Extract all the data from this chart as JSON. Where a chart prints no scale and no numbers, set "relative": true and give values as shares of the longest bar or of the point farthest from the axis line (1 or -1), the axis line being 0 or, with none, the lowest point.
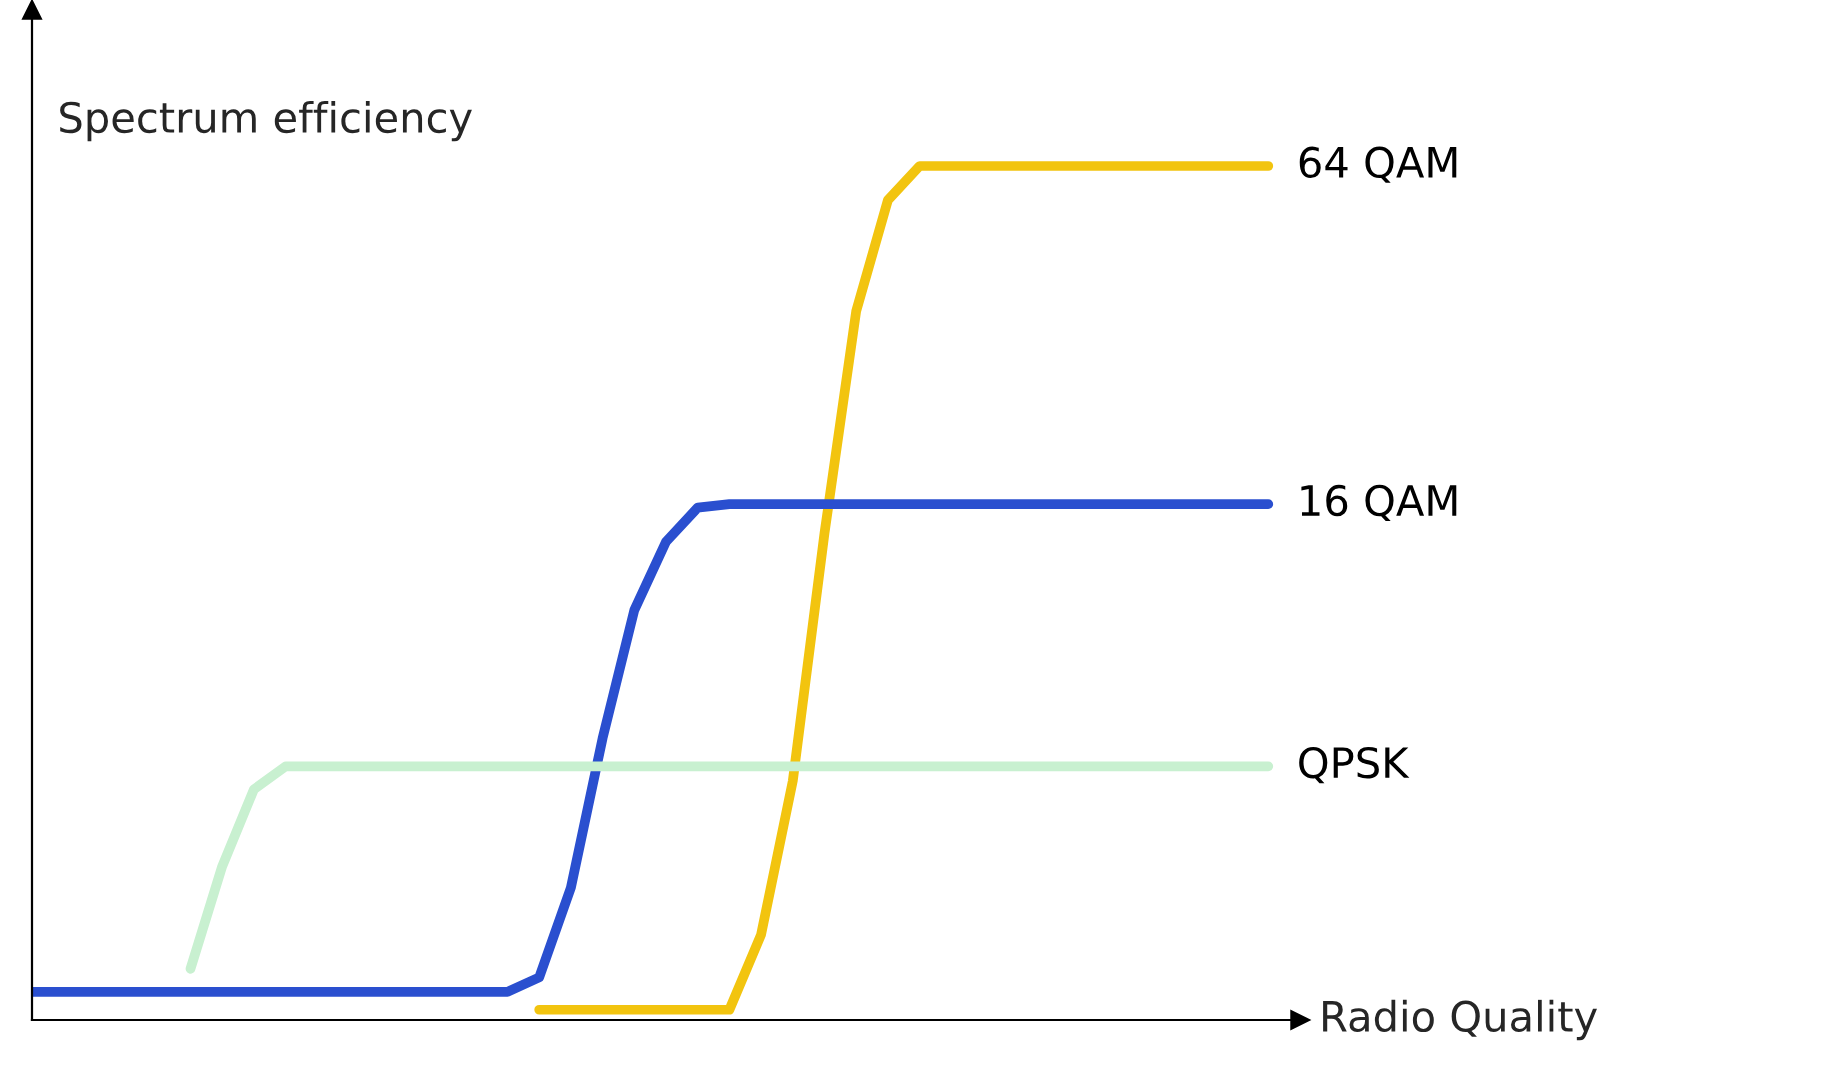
{
  "chart_data": {
    "type": "line",
    "relative": true,
    "xlabel": "Radio Quality",
    "ylabel": "Spectrum efficiency",
    "legend": false,
    "marker": "none",
    "line_style": "solid",
    "categories": [
      null,
      null,
      null,
      null,
      null,
      null,
      null,
      null,
      null,
      null,
      null,
      null,
      null,
      null,
      null,
      null,
      null,
      null,
      null,
      null,
      null,
      null,
      null,
      null,
      null,
      null,
      null,
      null,
      null,
      null,
      null,
      null,
      null,
      null,
      null,
      null,
      null,
      null,
      null,
      null
    ],
    "series": [
      {
        "name": "64 QAM",
        "color": "#f2c40f",
        "values": [
          null,
          null,
          null,
          null,
          null,
          null,
          null,
          null,
          null,
          null,
          null,
          null,
          null,
          null,
          null,
          null,
          0.012,
          0.012,
          0.012,
          0.012,
          0.012,
          0.012,
          0.012,
          0.1,
          0.28,
          0.57,
          0.83,
          0.96,
          1.0,
          1.0,
          1.0,
          1.0,
          1.0,
          1.0,
          1.0,
          1.0,
          1.0,
          1.0,
          1.0,
          1.0
        ]
      },
      {
        "name": "16 QAM",
        "color": "#2a4fcf",
        "values": [
          0.033,
          0.033,
          0.033,
          0.033,
          0.033,
          0.033,
          0.033,
          0.033,
          0.033,
          0.033,
          0.033,
          0.033,
          0.033,
          0.033,
          0.033,
          0.033,
          0.05,
          0.155,
          0.33,
          0.48,
          0.56,
          0.6,
          0.604,
          0.604,
          0.604,
          0.604,
          0.604,
          0.604,
          0.604,
          0.604,
          0.604,
          0.604,
          0.604,
          0.604,
          0.604,
          0.604,
          0.604,
          0.604,
          0.604,
          0.604
        ]
      },
      {
        "name": "QPSK",
        "color": "#c8f0d0",
        "values": [
          null,
          null,
          null,
          null,
          null,
          0.06,
          0.18,
          0.27,
          0.297,
          0.297,
          0.297,
          0.297,
          0.297,
          0.297,
          0.297,
          0.297,
          0.297,
          0.297,
          0.297,
          0.297,
          0.297,
          0.297,
          0.297,
          0.297,
          0.297,
          0.297,
          0.297,
          0.297,
          0.297,
          0.297,
          0.297,
          0.297,
          0.297,
          0.297,
          0.297,
          0.297,
          0.297,
          0.297,
          0.297,
          0.297
        ]
      }
    ]
  }
}
